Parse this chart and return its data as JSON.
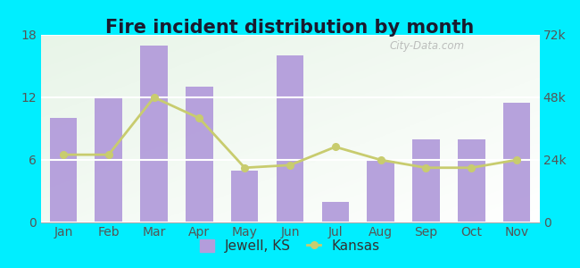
{
  "title": "Fire incident distribution by month",
  "months": [
    "Jan",
    "Feb",
    "Mar",
    "Apr",
    "May",
    "Jun",
    "Jul",
    "Aug",
    "Sep",
    "Oct",
    "Nov"
  ],
  "jewell_ks": [
    10,
    12,
    17,
    13,
    5,
    16,
    2,
    6,
    8,
    8,
    11.5
  ],
  "kansas_k": [
    26000,
    26000,
    48000,
    40000,
    21000,
    22000,
    29000,
    24000,
    21000,
    21000,
    24000
  ],
  "bar_color": "#b39ddb",
  "line_color": "#c8cc6e",
  "line_marker_color": "#c8cc6e",
  "outer_bg": "#00eeff",
  "plot_bg_left": "#d4edda",
  "plot_bg_right": "#f8fff8",
  "ylim_left": [
    0,
    18
  ],
  "ylim_right": [
    0,
    72000
  ],
  "yticks_left": [
    0,
    6,
    12,
    18
  ],
  "yticks_right": [
    0,
    24000,
    48000,
    72000
  ],
  "ytick_labels_right": [
    "0",
    "24k",
    "48k",
    "72k"
  ],
  "title_fontsize": 15,
  "title_color": "#1a1a2e",
  "axis_fontsize": 10,
  "legend_fontsize": 11,
  "watermark": "City-Data.com",
  "bar_width": 0.6
}
